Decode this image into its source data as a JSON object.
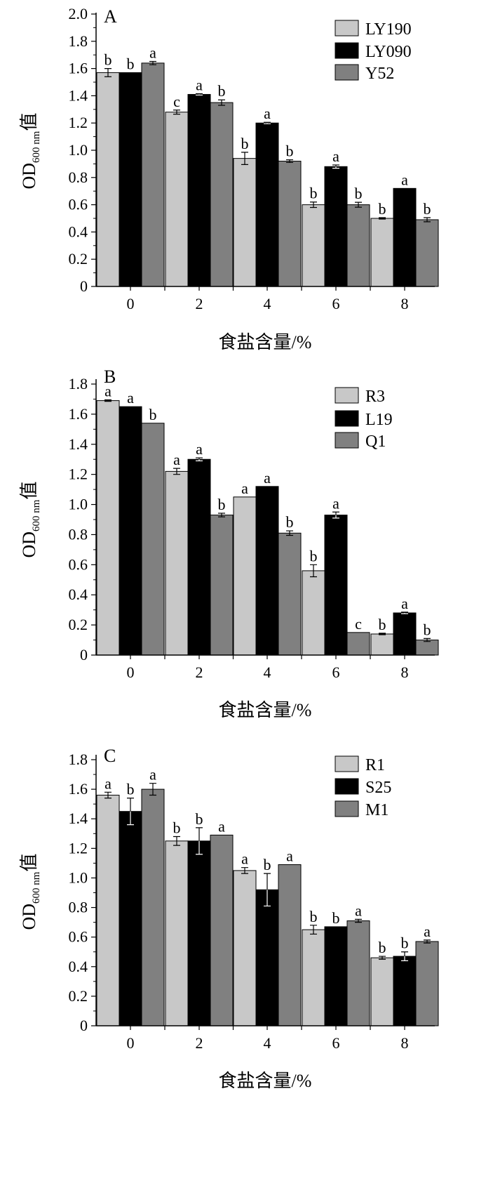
{
  "chart_data": [
    {
      "type": "bar",
      "panel": "A",
      "xlabel": "食盐含量/%",
      "ylabel": "OD600 nm值",
      "ylabel_main": "OD",
      "ylabel_sub": "600 nm",
      "ylabel_tail": "值",
      "categories": [
        "0",
        "2",
        "4",
        "6",
        "8"
      ],
      "ylim": [
        0,
        2.0
      ],
      "yticks": [
        "0",
        "0.2",
        "0.4",
        "0.6",
        "0.8",
        "1.0",
        "1.2",
        "1.4",
        "1.6",
        "1.8",
        "2.0"
      ],
      "legend_position": "top-right",
      "series": [
        {
          "name": "LY190",
          "color": "#c8c8c8",
          "values": [
            1.57,
            1.28,
            0.94,
            0.6,
            0.5
          ],
          "errors": [
            0.03,
            0.015,
            0.045,
            0.02,
            0.005
          ],
          "letters": [
            "b",
            "c",
            "b",
            "b",
            "b"
          ]
        },
        {
          "name": "LY090",
          "color": "#000000",
          "values": [
            1.57,
            1.41,
            1.2,
            0.88,
            0.72
          ],
          "errors": [
            0.0,
            0.005,
            0.005,
            0.012,
            0.0
          ],
          "letters": [
            "b",
            "a",
            "a",
            "a",
            "a"
          ]
        },
        {
          "name": "Y52",
          "color": "#808080",
          "values": [
            1.64,
            1.35,
            0.92,
            0.6,
            0.49
          ],
          "errors": [
            0.012,
            0.02,
            0.01,
            0.018,
            0.015
          ],
          "letters": [
            "a",
            "b",
            "b",
            "b",
            "b"
          ]
        }
      ]
    },
    {
      "type": "bar",
      "panel": "B",
      "xlabel": "食盐含量/%",
      "ylabel": "OD600 nm值",
      "ylabel_main": "OD",
      "ylabel_sub": "600 nm",
      "ylabel_tail": "值",
      "categories": [
        "0",
        "2",
        "4",
        "6",
        "8"
      ],
      "ylim": [
        0,
        1.8
      ],
      "yticks": [
        "0",
        "0.2",
        "0.4",
        "0.6",
        "0.8",
        "1.0",
        "1.2",
        "1.4",
        "1.6",
        "1.8"
      ],
      "legend_position": "top-right",
      "series": [
        {
          "name": "R3",
          "color": "#c8c8c8",
          "values": [
            1.69,
            1.22,
            1.05,
            0.56,
            0.14
          ],
          "errors": [
            0.005,
            0.02,
            0.0,
            0.04,
            0.005
          ],
          "letters": [
            "a",
            "a",
            "a",
            "b",
            "b"
          ]
        },
        {
          "name": "L19",
          "color": "#000000",
          "values": [
            1.65,
            1.3,
            1.12,
            0.93,
            0.28
          ],
          "errors": [
            0.0,
            0.01,
            0.0,
            0.02,
            0.005
          ],
          "letters": [
            "a",
            "a",
            "a",
            "a",
            "a"
          ]
        },
        {
          "name": "Q1",
          "color": "#808080",
          "values": [
            1.54,
            0.93,
            0.81,
            0.15,
            0.1
          ],
          "errors": [
            0.0,
            0.012,
            0.015,
            0.0,
            0.01
          ],
          "letters": [
            "b",
            "b",
            "b",
            "c",
            "b"
          ]
        }
      ]
    },
    {
      "type": "bar",
      "panel": "C",
      "xlabel": "食盐含量/%",
      "ylabel": "OD600 nm值",
      "ylabel_main": "OD",
      "ylabel_sub": "600 nm",
      "ylabel_tail": "值",
      "categories": [
        "0",
        "2",
        "4",
        "6",
        "8"
      ],
      "ylim": [
        0,
        1.8
      ],
      "yticks": [
        "0",
        "0.2",
        "0.4",
        "0.6",
        "0.8",
        "1.0",
        "1.2",
        "1.4",
        "1.6",
        "1.8"
      ],
      "legend_position": "top-right",
      "series": [
        {
          "name": "R1",
          "color": "#c8c8c8",
          "values": [
            1.56,
            1.25,
            1.05,
            0.65,
            0.46
          ],
          "errors": [
            0.02,
            0.03,
            0.02,
            0.03,
            0.01
          ],
          "letters": [
            "a",
            "b",
            "a",
            "b",
            "b"
          ]
        },
        {
          "name": "S25",
          "color": "#000000",
          "values": [
            1.45,
            1.25,
            0.92,
            0.67,
            0.47
          ],
          "errors": [
            0.09,
            0.09,
            0.11,
            0.0,
            0.03
          ],
          "letters": [
            "b",
            "b",
            "b",
            "b",
            "b"
          ]
        },
        {
          "name": "M1",
          "color": "#808080",
          "values": [
            1.6,
            1.29,
            1.09,
            0.71,
            0.57
          ],
          "errors": [
            0.04,
            0.0,
            0.0,
            0.01,
            0.01
          ],
          "letters": [
            "a",
            "a",
            "a",
            "a",
            "a"
          ]
        }
      ]
    }
  ]
}
